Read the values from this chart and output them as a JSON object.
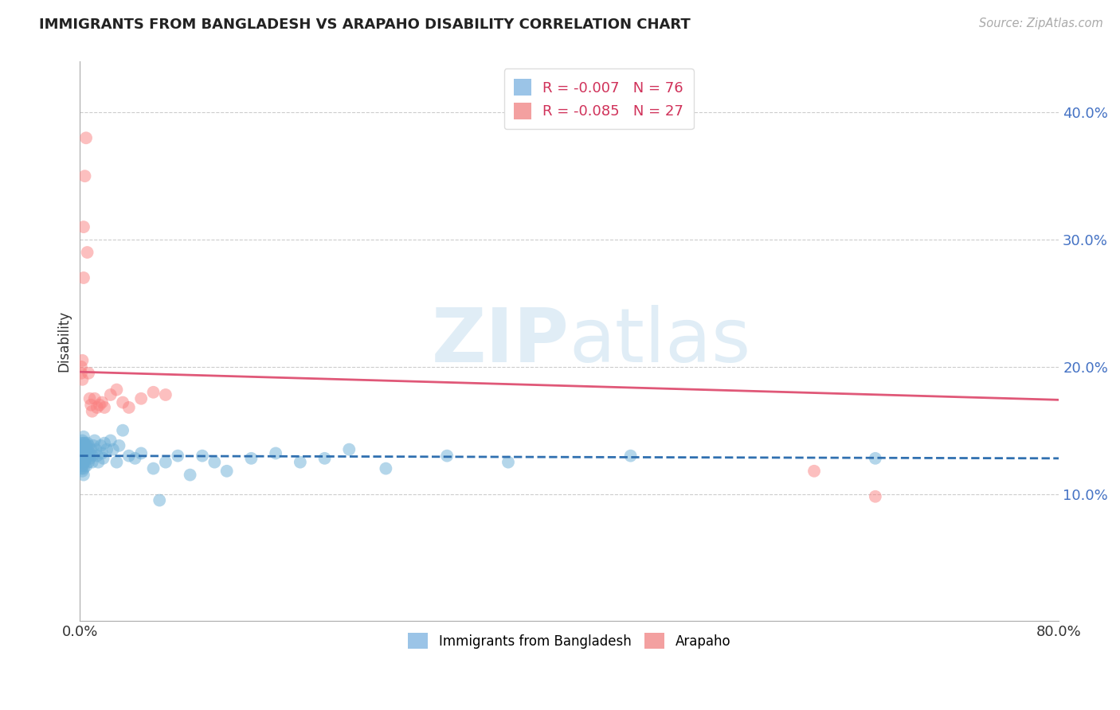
{
  "title": "IMMIGRANTS FROM BANGLADESH VS ARAPAHO DISABILITY CORRELATION CHART",
  "source": "Source: ZipAtlas.com",
  "ylabel": "Disability",
  "xlabel": "",
  "xlim": [
    0.0,
    0.8
  ],
  "ylim": [
    0.0,
    0.44
  ],
  "yticks": [
    0.1,
    0.2,
    0.3,
    0.4
  ],
  "ytick_labels": [
    "10.0%",
    "20.0%",
    "30.0%",
    "40.0%"
  ],
  "xticks": [
    0.0,
    0.1,
    0.2,
    0.3,
    0.4,
    0.5,
    0.6,
    0.7,
    0.8
  ],
  "xtick_labels": [
    "0.0%",
    "",
    "",
    "",
    "",
    "",
    "",
    "",
    "80.0%"
  ],
  "watermark_part1": "ZIP",
  "watermark_part2": "atlas",
  "legend_entries": [
    {
      "label": "R = -0.007   N = 76",
      "color": "#7ab0e0"
    },
    {
      "label": "R = -0.085   N = 27",
      "color": "#f08080"
    }
  ],
  "blue_scatter_x": [
    0.001,
    0.001,
    0.001,
    0.001,
    0.001,
    0.002,
    0.002,
    0.002,
    0.002,
    0.002,
    0.002,
    0.002,
    0.002,
    0.002,
    0.003,
    0.003,
    0.003,
    0.003,
    0.003,
    0.003,
    0.003,
    0.004,
    0.004,
    0.004,
    0.004,
    0.005,
    0.005,
    0.005,
    0.005,
    0.006,
    0.006,
    0.006,
    0.007,
    0.007,
    0.007,
    0.008,
    0.008,
    0.009,
    0.01,
    0.01,
    0.011,
    0.012,
    0.013,
    0.014,
    0.015,
    0.017,
    0.018,
    0.019,
    0.02,
    0.022,
    0.025,
    0.027,
    0.03,
    0.032,
    0.035,
    0.04,
    0.045,
    0.05,
    0.06,
    0.065,
    0.07,
    0.08,
    0.09,
    0.1,
    0.11,
    0.12,
    0.14,
    0.16,
    0.18,
    0.2,
    0.22,
    0.25,
    0.3,
    0.35,
    0.45,
    0.65
  ],
  "blue_scatter_y": [
    0.13,
    0.135,
    0.14,
    0.125,
    0.12,
    0.13,
    0.132,
    0.128,
    0.135,
    0.138,
    0.142,
    0.125,
    0.122,
    0.118,
    0.13,
    0.135,
    0.14,
    0.125,
    0.12,
    0.115,
    0.145,
    0.13,
    0.135,
    0.125,
    0.14,
    0.128,
    0.132,
    0.138,
    0.122,
    0.13,
    0.135,
    0.14,
    0.125,
    0.13,
    0.138,
    0.132,
    0.128,
    0.135,
    0.125,
    0.13,
    0.138,
    0.142,
    0.135,
    0.13,
    0.125,
    0.138,
    0.132,
    0.128,
    0.14,
    0.135,
    0.142,
    0.135,
    0.125,
    0.138,
    0.15,
    0.13,
    0.128,
    0.132,
    0.12,
    0.095,
    0.125,
    0.13,
    0.115,
    0.13,
    0.125,
    0.118,
    0.128,
    0.132,
    0.125,
    0.128,
    0.135,
    0.12,
    0.13,
    0.125,
    0.13,
    0.128
  ],
  "pink_scatter_x": [
    0.001,
    0.001,
    0.002,
    0.002,
    0.003,
    0.003,
    0.004,
    0.005,
    0.006,
    0.007,
    0.008,
    0.009,
    0.01,
    0.012,
    0.014,
    0.016,
    0.018,
    0.02,
    0.025,
    0.03,
    0.035,
    0.04,
    0.05,
    0.06,
    0.07,
    0.6,
    0.65
  ],
  "pink_scatter_y": [
    0.195,
    0.2,
    0.19,
    0.205,
    0.27,
    0.31,
    0.35,
    0.38,
    0.29,
    0.195,
    0.175,
    0.17,
    0.165,
    0.175,
    0.168,
    0.17,
    0.172,
    0.168,
    0.178,
    0.182,
    0.172,
    0.168,
    0.175,
    0.18,
    0.178,
    0.118,
    0.098
  ],
  "blue_line_x": [
    0.0,
    0.8
  ],
  "blue_line_y": [
    0.13,
    0.128
  ],
  "pink_line_x": [
    0.0,
    0.8
  ],
  "pink_line_y": [
    0.196,
    0.174
  ],
  "blue_color": "#6baed6",
  "pink_color": "#fa8080",
  "blue_line_color": "#3070b0",
  "pink_line_color": "#e05878",
  "background_color": "#ffffff",
  "grid_color": "#cccccc",
  "title_fontsize": 12,
  "axis_label_color": "#333333",
  "tick_label_color_y": "#4472c4",
  "tick_label_color_x": "#333333",
  "bottom_legend": [
    {
      "label": "Immigrants from Bangladesh",
      "color": "#7ab0e0"
    },
    {
      "label": "Arapaho",
      "color": "#f08080"
    }
  ]
}
